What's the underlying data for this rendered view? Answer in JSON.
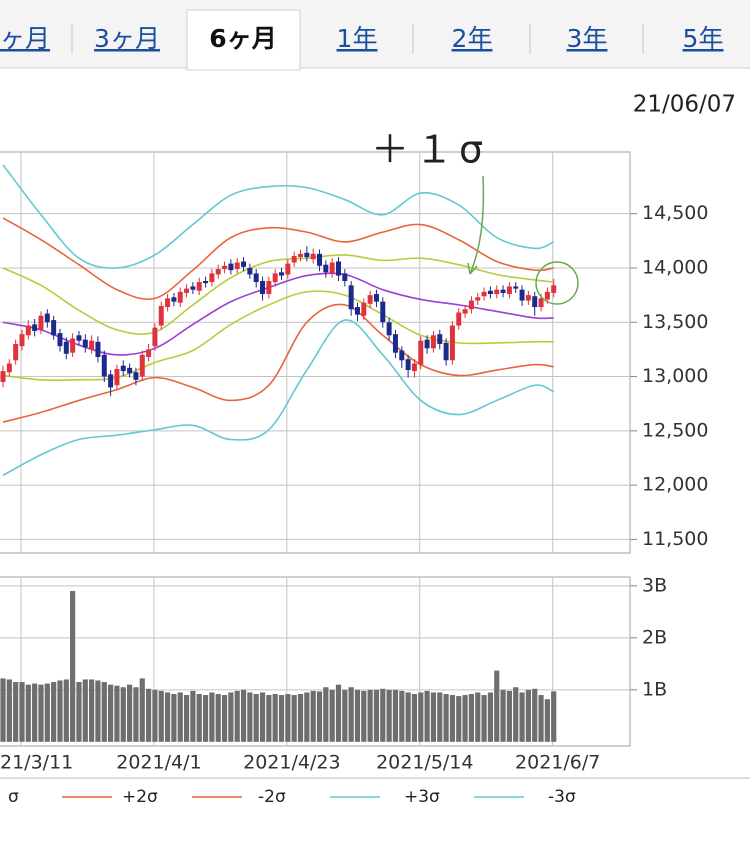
{
  "tabs": [
    "ヶ月",
    "3ヶ月",
    "6ヶ月",
    "1年",
    "2年",
    "3年",
    "5年"
  ],
  "active_tab": 2,
  "chart_data": [
    {
      "type": "candlestick",
      "date": "21/06/07",
      "annotation": "＋１σ",
      "up_color": "#e0323c",
      "down_color": "#1c2a8c",
      "ylim": [
        11375,
        15068
      ],
      "yticks": [
        {
          "value": 11500,
          "label": "11,500"
        },
        {
          "value": 12000,
          "label": "12,000"
        },
        {
          "value": 12500,
          "label": "12,500"
        },
        {
          "value": 13000,
          "label": "13,000"
        },
        {
          "value": 13500,
          "label": "13,500"
        },
        {
          "value": 14000,
          "label": "14,000"
        },
        {
          "value": 14500,
          "label": "14,500"
        }
      ],
      "grid": true,
      "open": [
        12950,
        13040,
        13150,
        13280,
        13380,
        13480,
        13430,
        13580,
        13520,
        13400,
        13320,
        13220,
        13380,
        13340,
        13250,
        13320,
        13200,
        13020,
        12920,
        13100,
        13080,
        13040,
        13000,
        13180,
        13280,
        13470,
        13640,
        13730,
        13680,
        13770,
        13830,
        13790,
        13880,
        13870,
        13940,
        13990,
        14040,
        13990,
        14060,
        14000,
        13950,
        13880,
        13760,
        13870,
        13960,
        13940,
        14050,
        14100,
        14140,
        14080,
        14130,
        14030,
        13950,
        14060,
        13950,
        13840,
        13640,
        13560,
        13670,
        13760,
        13690,
        13500,
        13390,
        13240,
        13160,
        13050,
        13110,
        13340,
        13260,
        13390,
        13310,
        13150,
        13470,
        13580,
        13620,
        13700,
        13740,
        13790,
        13760,
        13800,
        13760,
        13830,
        13800,
        13700,
        13740,
        13640,
        13710,
        13770
      ],
      "high": [
        13100,
        13160,
        13340,
        13430,
        13520,
        13530,
        13600,
        13620,
        13560,
        13440,
        13360,
        13400,
        13420,
        13390,
        13380,
        13370,
        13240,
        13060,
        13110,
        13150,
        13120,
        13080,
        13240,
        13300,
        13490,
        13690,
        13760,
        13770,
        13820,
        13850,
        13870,
        13910,
        13920,
        13990,
        14030,
        14060,
        14080,
        14090,
        14100,
        14040,
        13990,
        13920,
        13920,
        13990,
        14000,
        14080,
        14150,
        14170,
        14200,
        14180,
        14170,
        14070,
        14090,
        14100,
        13990,
        13880,
        13680,
        13720,
        13790,
        13800,
        13730,
        13540,
        13430,
        13280,
        13200,
        13160,
        13370,
        13380,
        13420,
        13430,
        13350,
        13510,
        13630,
        13660,
        13740,
        13770,
        13820,
        13830,
        13840,
        13840,
        13870,
        13870,
        13840,
        13790,
        13780,
        13760,
        13820,
        13900
      ],
      "low": [
        12900,
        13000,
        13110,
        13240,
        13340,
        13370,
        13390,
        13450,
        13340,
        13230,
        13160,
        13180,
        13290,
        13220,
        13210,
        13130,
        12950,
        12820,
        12880,
        13000,
        12990,
        12920,
        12960,
        13140,
        13240,
        13430,
        13600,
        13650,
        13640,
        13730,
        13760,
        13750,
        13820,
        13830,
        13900,
        13950,
        13940,
        13950,
        13970,
        13900,
        13820,
        13700,
        13720,
        13830,
        13890,
        13900,
        14010,
        14060,
        14060,
        14040,
        13970,
        13910,
        13910,
        13880,
        13830,
        13560,
        13510,
        13520,
        13630,
        13640,
        13450,
        13330,
        13170,
        13080,
        12990,
        12990,
        13070,
        13210,
        13220,
        13250,
        13100,
        13110,
        13430,
        13540,
        13580,
        13660,
        13700,
        13720,
        13720,
        13730,
        13720,
        13770,
        13650,
        13660,
        13560,
        13600,
        13670,
        13730
      ],
      "close": [
        13050,
        13120,
        13300,
        13390,
        13470,
        13420,
        13560,
        13500,
        13380,
        13280,
        13210,
        13350,
        13330,
        13270,
        13330,
        13180,
        13000,
        12900,
        13070,
        13050,
        13030,
        12970,
        13200,
        13250,
        13450,
        13650,
        13720,
        13690,
        13780,
        13810,
        13800,
        13870,
        13860,
        13950,
        13990,
        14020,
        13980,
        14050,
        14010,
        13940,
        13870,
        13760,
        13880,
        13950,
        13930,
        14040,
        14110,
        14130,
        14100,
        14130,
        14020,
        13960,
        14050,
        13930,
        13880,
        13620,
        13570,
        13680,
        13750,
        13690,
        13500,
        13380,
        13220,
        13150,
        13060,
        13120,
        13330,
        13260,
        13380,
        13300,
        13150,
        13470,
        13590,
        13620,
        13700,
        13730,
        13780,
        13760,
        13800,
        13770,
        13830,
        13810,
        13700,
        13750,
        13640,
        13720,
        13780,
        13840
      ],
      "band_x": [
        0,
        6,
        12,
        18,
        24,
        30,
        36,
        42,
        48,
        54,
        60,
        66,
        72,
        78,
        84,
        87
      ],
      "series": [
        {
          "name": "+3σ",
          "color": "#62c8d2",
          "values": [
            14950,
            14490,
            14090,
            14000,
            14120,
            14400,
            14670,
            14750,
            14740,
            14630,
            14490,
            14690,
            14580,
            14280,
            14180,
            14240
          ]
        },
        {
          "name": "+2σ",
          "color": "#e8643c",
          "values": [
            14460,
            14260,
            14030,
            13800,
            13720,
            13980,
            14280,
            14370,
            14330,
            14240,
            14330,
            14400,
            14260,
            14060,
            13980,
            14000
          ]
        },
        {
          "color": "#b9cc3c",
          "values": [
            14000,
            13840,
            13610,
            13430,
            13410,
            13660,
            13910,
            14060,
            14090,
            14120,
            14070,
            14090,
            14030,
            13940,
            13890,
            13870
          ]
        },
        {
          "color": "#9b3fd6",
          "values": [
            13500,
            13430,
            13290,
            13200,
            13260,
            13480,
            13690,
            13820,
            13930,
            13940,
            13800,
            13710,
            13660,
            13600,
            13540,
            13540
          ]
        },
        {
          "name": "σ",
          "color": "#b9cc3c",
          "values": [
            13010,
            12970,
            12970,
            12990,
            13130,
            13240,
            13480,
            13660,
            13780,
            13750,
            13570,
            13380,
            13310,
            13310,
            13320,
            13320
          ]
        },
        {
          "name": "-2σ",
          "color": "#e8643c",
          "values": [
            12580,
            12670,
            12780,
            12880,
            12990,
            12900,
            12780,
            12920,
            13500,
            13660,
            13380,
            13110,
            13010,
            13060,
            13110,
            13090
          ]
        },
        {
          "name": "-3σ",
          "color": "#62c8d2",
          "values": [
            12090,
            12280,
            12420,
            12460,
            12510,
            12550,
            12420,
            12510,
            13060,
            13520,
            13200,
            12780,
            12650,
            12780,
            12920,
            12860
          ]
        }
      ],
      "legend": [
        4,
        1,
        5,
        0,
        6
      ]
    },
    {
      "type": "bar",
      "color": "#6e6e6e",
      "ylim": [
        -0.08,
        3.17
      ],
      "yticks": [
        {
          "value": 1,
          "label": "1B"
        },
        {
          "value": 2,
          "label": "2B"
        },
        {
          "value": 3,
          "label": "3B"
        }
      ],
      "categories": [
        null,
        null,
        null,
        "21/3/11",
        null,
        null,
        null,
        null,
        null,
        null,
        null,
        null,
        null,
        null,
        null,
        null,
        null,
        null,
        null,
        null,
        null,
        null,
        null,
        null,
        "2021/4/1",
        null,
        null,
        null,
        null,
        null,
        null,
        null,
        null,
        null,
        null,
        null,
        null,
        null,
        null,
        null,
        null,
        null,
        null,
        null,
        null,
        "2021/4/23",
        null,
        null,
        null,
        null,
        null,
        null,
        null,
        null,
        null,
        null,
        null,
        null,
        null,
        null,
        null,
        null,
        null,
        null,
        null,
        null,
        "2021/5/14",
        null,
        null,
        null,
        null,
        null,
        null,
        null,
        null,
        null,
        null,
        null,
        null,
        null,
        null,
        null,
        null,
        null,
        null,
        null,
        null,
        "2021/6/7"
      ],
      "values": [
        1.22,
        1.2,
        1.15,
        1.15,
        1.1,
        1.12,
        1.1,
        1.12,
        1.15,
        1.18,
        1.2,
        2.9,
        1.15,
        1.2,
        1.2,
        1.18,
        1.15,
        1.1,
        1.08,
        1.05,
        1.1,
        1.05,
        1.22,
        1.02,
        1.0,
        0.98,
        0.95,
        0.92,
        0.95,
        0.9,
        0.98,
        0.92,
        0.9,
        0.95,
        0.92,
        0.9,
        0.95,
        0.98,
        1.0,
        0.95,
        0.92,
        0.95,
        0.9,
        0.92,
        0.9,
        0.92,
        0.9,
        0.92,
        0.95,
        0.98,
        0.97,
        1.05,
        1.0,
        1.1,
        1.0,
        1.05,
        1.0,
        0.98,
        1.0,
        1.0,
        1.02,
        1.0,
        1.0,
        0.98,
        0.95,
        0.92,
        0.95,
        0.98,
        0.95,
        0.95,
        0.92,
        0.9,
        0.88,
        0.9,
        0.92,
        0.95,
        0.9,
        0.95,
        1.37,
        1.0,
        0.98,
        1.05,
        0.95,
        1.0,
        1.02,
        0.9,
        0.82,
        0.97
      ]
    }
  ]
}
